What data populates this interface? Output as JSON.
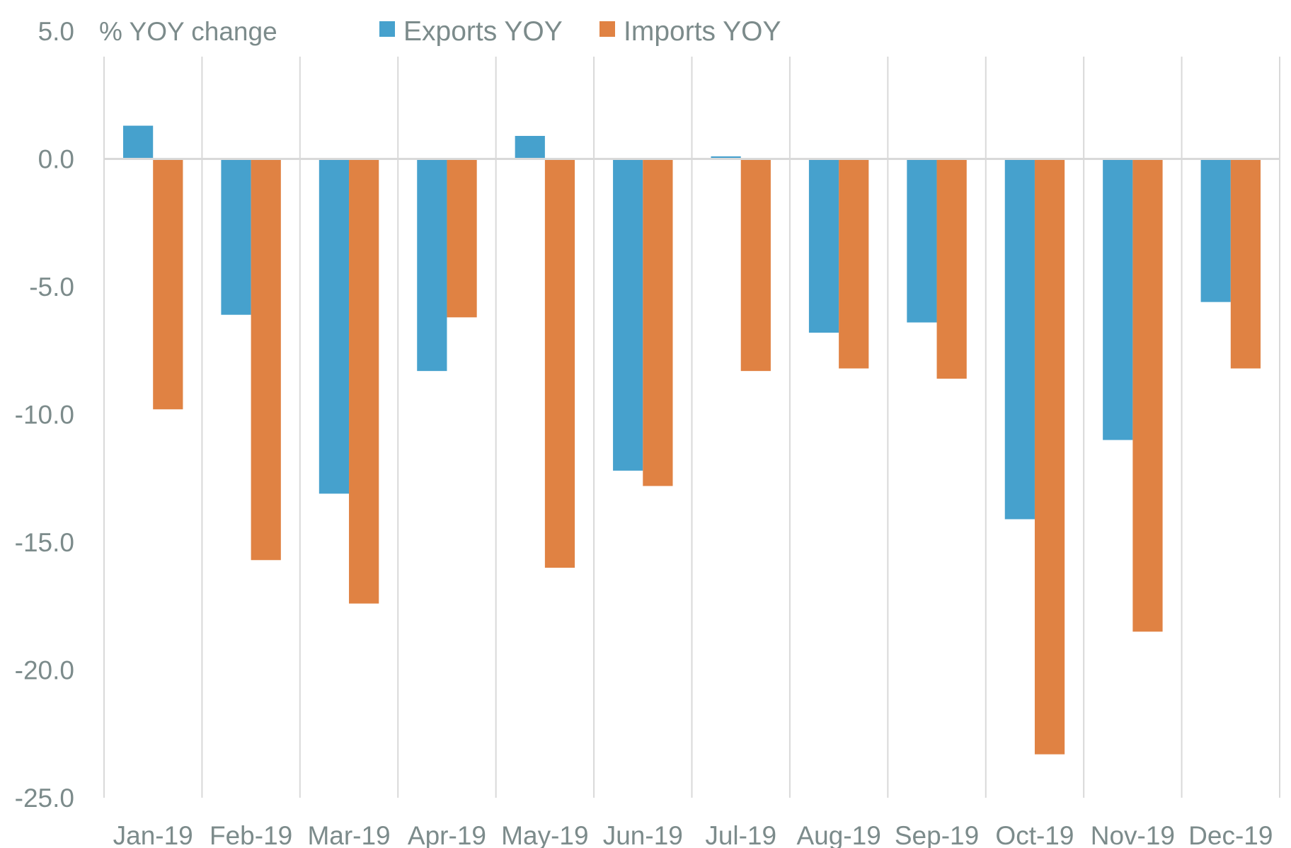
{
  "chart_data": {
    "type": "bar",
    "title": "",
    "ylabel": "% YOY change",
    "xlabel": "",
    "ylim": [
      -25,
      5
    ],
    "yticks": [
      5.0,
      0.0,
      -5.0,
      -10.0,
      -15.0,
      -20.0,
      -25.0
    ],
    "ytick_labels": [
      "5.0",
      "0.0",
      "-5.0",
      "-10.0",
      "-15.0",
      "-20.0",
      "-25.0"
    ],
    "grid": "vertical category separators",
    "legend_position": "top",
    "categories": [
      "Jan-19",
      "Feb-19",
      "Mar-19",
      "Apr-19",
      "May-19",
      "Jun-19",
      "Jul-19",
      "Aug-19",
      "Sep-19",
      "Oct-19",
      "Nov-19",
      "Dec-19"
    ],
    "series": [
      {
        "name": "Exports YOY",
        "color": "#46A1CD",
        "values": [
          1.3,
          -6.1,
          -13.1,
          -8.3,
          0.9,
          -12.2,
          0.1,
          -6.8,
          -6.4,
          -14.1,
          -11.0,
          -5.6
        ]
      },
      {
        "name": "Imports YOY",
        "color": "#E08243",
        "values": [
          -9.8,
          -15.7,
          -17.4,
          -6.2,
          -16.0,
          -12.8,
          -8.3,
          -8.2,
          -8.6,
          -23.3,
          -18.5,
          -8.2
        ]
      }
    ]
  }
}
